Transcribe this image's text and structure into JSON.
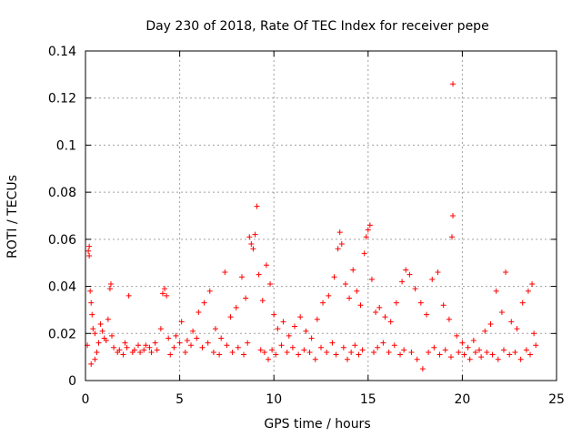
{
  "chart_data": {
    "type": "scatter",
    "title": "Day 230 of 2018, Rate Of TEC Index for receiver pepe",
    "xlabel": "GPS time / hours",
    "ylabel": "ROTI / TECUs",
    "xlim": [
      0,
      25
    ],
    "ylim": [
      0,
      0.14
    ],
    "x_ticks": [
      0,
      5,
      10,
      15,
      20,
      25
    ],
    "y_ticks": [
      0,
      0.02,
      0.04,
      0.06,
      0.08,
      0.1,
      0.12,
      0.14
    ],
    "x_tick_labels": [
      "0",
      "5",
      "10",
      "15",
      "20",
      "25"
    ],
    "y_tick_labels": [
      "0",
      "0.02",
      "0.04",
      "0.06",
      "0.08",
      "0.1",
      "0.12",
      "0.14"
    ],
    "grid": true,
    "marker": "+",
    "color": "#ff0000",
    "series": [
      {
        "name": "ROTI",
        "points": [
          [
            0.1,
            0.015
          ],
          [
            0.15,
            0.055
          ],
          [
            0.2,
            0.057
          ],
          [
            0.2,
            0.053
          ],
          [
            0.25,
            0.038
          ],
          [
            0.3,
            0.033
          ],
          [
            0.35,
            0.028
          ],
          [
            0.4,
            0.022
          ],
          [
            0.3,
            0.007
          ],
          [
            0.5,
            0.009
          ],
          [
            0.6,
            0.012
          ],
          [
            0.8,
            0.024
          ],
          [
            1.0,
            0.018
          ],
          [
            1.2,
            0.026
          ],
          [
            1.3,
            0.039
          ],
          [
            1.35,
            0.041
          ],
          [
            1.5,
            0.014
          ],
          [
            1.8,
            0.013
          ],
          [
            2.1,
            0.016
          ],
          [
            2.3,
            0.036
          ],
          [
            2.5,
            0.012
          ],
          [
            2.8,
            0.015
          ],
          [
            3.1,
            0.013
          ],
          [
            3.4,
            0.014
          ],
          [
            3.7,
            0.016
          ],
          [
            4.0,
            0.022
          ],
          [
            4.1,
            0.037
          ],
          [
            4.2,
            0.039
          ],
          [
            4.3,
            0.036
          ],
          [
            4.5,
            0.011
          ],
          [
            4.8,
            0.019
          ],
          [
            5.1,
            0.025
          ],
          [
            5.4,
            0.017
          ],
          [
            5.7,
            0.021
          ],
          [
            6.0,
            0.029
          ],
          [
            6.3,
            0.033
          ],
          [
            6.6,
            0.038
          ],
          [
            6.9,
            0.022
          ],
          [
            7.2,
            0.018
          ],
          [
            7.4,
            0.046
          ],
          [
            7.7,
            0.027
          ],
          [
            8.0,
            0.031
          ],
          [
            8.3,
            0.044
          ],
          [
            8.5,
            0.035
          ],
          [
            8.7,
            0.061
          ],
          [
            8.8,
            0.058
          ],
          [
            8.9,
            0.056
          ],
          [
            9.0,
            0.062
          ],
          [
            9.1,
            0.074
          ],
          [
            9.2,
            0.045
          ],
          [
            9.4,
            0.034
          ],
          [
            9.6,
            0.049
          ],
          [
            9.8,
            0.041
          ],
          [
            10.0,
            0.028
          ],
          [
            10.2,
            0.022
          ],
          [
            10.5,
            0.025
          ],
          [
            10.8,
            0.019
          ],
          [
            11.1,
            0.023
          ],
          [
            11.4,
            0.027
          ],
          [
            11.7,
            0.021
          ],
          [
            12.0,
            0.018
          ],
          [
            12.3,
            0.026
          ],
          [
            12.6,
            0.033
          ],
          [
            12.9,
            0.036
          ],
          [
            13.2,
            0.044
          ],
          [
            13.4,
            0.056
          ],
          [
            13.5,
            0.063
          ],
          [
            13.6,
            0.058
          ],
          [
            13.8,
            0.041
          ],
          [
            14.0,
            0.035
          ],
          [
            14.2,
            0.047
          ],
          [
            14.4,
            0.038
          ],
          [
            14.6,
            0.032
          ],
          [
            14.8,
            0.054
          ],
          [
            14.9,
            0.061
          ],
          [
            15.0,
            0.064
          ],
          [
            15.1,
            0.066
          ],
          [
            15.2,
            0.043
          ],
          [
            15.4,
            0.029
          ],
          [
            15.6,
            0.031
          ],
          [
            15.9,
            0.027
          ],
          [
            16.2,
            0.025
          ],
          [
            16.5,
            0.033
          ],
          [
            16.8,
            0.042
          ],
          [
            17.0,
            0.047
          ],
          [
            17.2,
            0.045
          ],
          [
            17.5,
            0.039
          ],
          [
            17.8,
            0.033
          ],
          [
            18.1,
            0.028
          ],
          [
            18.4,
            0.043
          ],
          [
            18.7,
            0.046
          ],
          [
            19.0,
            0.032
          ],
          [
            19.3,
            0.026
          ],
          [
            19.5,
            0.126
          ],
          [
            19.5,
            0.07
          ],
          [
            19.45,
            0.061
          ],
          [
            19.7,
            0.019
          ],
          [
            20.0,
            0.016
          ],
          [
            20.3,
            0.014
          ],
          [
            20.6,
            0.017
          ],
          [
            20.9,
            0.013
          ],
          [
            21.2,
            0.021
          ],
          [
            21.5,
            0.024
          ],
          [
            21.8,
            0.038
          ],
          [
            22.1,
            0.029
          ],
          [
            22.3,
            0.046
          ],
          [
            22.6,
            0.025
          ],
          [
            22.9,
            0.022
          ],
          [
            23.2,
            0.033
          ],
          [
            23.5,
            0.038
          ],
          [
            23.7,
            0.041
          ],
          [
            23.9,
            0.015
          ],
          [
            0.5,
            0.02
          ],
          [
            0.7,
            0.016
          ],
          [
            0.9,
            0.021
          ],
          [
            1.1,
            0.017
          ],
          [
            1.4,
            0.019
          ],
          [
            1.7,
            0.012
          ],
          [
            2.0,
            0.011
          ],
          [
            2.2,
            0.014
          ],
          [
            2.6,
            0.013
          ],
          [
            2.9,
            0.012
          ],
          [
            3.2,
            0.015
          ],
          [
            3.5,
            0.012
          ],
          [
            3.8,
            0.013
          ],
          [
            4.4,
            0.018
          ],
          [
            4.7,
            0.014
          ],
          [
            5.0,
            0.016
          ],
          [
            5.3,
            0.012
          ],
          [
            5.6,
            0.015
          ],
          [
            5.9,
            0.018
          ],
          [
            6.2,
            0.014
          ],
          [
            6.5,
            0.016
          ],
          [
            6.8,
            0.012
          ],
          [
            7.1,
            0.011
          ],
          [
            7.5,
            0.015
          ],
          [
            7.8,
            0.012
          ],
          [
            8.1,
            0.014
          ],
          [
            8.4,
            0.011
          ],
          [
            8.6,
            0.016
          ],
          [
            9.3,
            0.013
          ],
          [
            9.5,
            0.012
          ],
          [
            9.7,
            0.009
          ],
          [
            9.9,
            0.013
          ],
          [
            10.1,
            0.011
          ],
          [
            10.4,
            0.015
          ],
          [
            10.7,
            0.012
          ],
          [
            11.0,
            0.014
          ],
          [
            11.3,
            0.011
          ],
          [
            11.6,
            0.013
          ],
          [
            11.9,
            0.012
          ],
          [
            12.2,
            0.009
          ],
          [
            12.5,
            0.014
          ],
          [
            12.8,
            0.012
          ],
          [
            13.1,
            0.016
          ],
          [
            13.3,
            0.011
          ],
          [
            13.7,
            0.014
          ],
          [
            13.9,
            0.009
          ],
          [
            14.1,
            0.012
          ],
          [
            14.3,
            0.015
          ],
          [
            14.5,
            0.011
          ],
          [
            14.7,
            0.013
          ],
          [
            15.3,
            0.012
          ],
          [
            15.5,
            0.014
          ],
          [
            15.8,
            0.016
          ],
          [
            16.1,
            0.012
          ],
          [
            16.4,
            0.015
          ],
          [
            16.7,
            0.011
          ],
          [
            16.9,
            0.013
          ],
          [
            17.3,
            0.012
          ],
          [
            17.6,
            0.009
          ],
          [
            17.9,
            0.005
          ],
          [
            18.2,
            0.012
          ],
          [
            18.5,
            0.014
          ],
          [
            18.8,
            0.011
          ],
          [
            19.1,
            0.013
          ],
          [
            19.4,
            0.01
          ],
          [
            19.8,
            0.012
          ],
          [
            20.1,
            0.011
          ],
          [
            20.4,
            0.009
          ],
          [
            20.7,
            0.012
          ],
          [
            21.0,
            0.01
          ],
          [
            21.3,
            0.012
          ],
          [
            21.6,
            0.011
          ],
          [
            21.9,
            0.009
          ],
          [
            22.2,
            0.013
          ],
          [
            22.5,
            0.011
          ],
          [
            22.8,
            0.012
          ],
          [
            23.1,
            0.009
          ],
          [
            23.4,
            0.013
          ],
          [
            23.6,
            0.011
          ],
          [
            23.8,
            0.02
          ]
        ]
      }
    ]
  }
}
